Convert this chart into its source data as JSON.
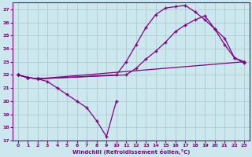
{
  "xlabel": "Windchill (Refroidissement éolien,°C)",
  "bg_color": "#cce8ee",
  "grid_color": "#aaccd4",
  "line_color": "#800080",
  "xlim": [
    -0.5,
    23.5
  ],
  "ylim": [
    17,
    27.5
  ],
  "yticks": [
    17,
    18,
    19,
    20,
    21,
    22,
    23,
    24,
    25,
    26,
    27
  ],
  "xticks": [
    0,
    1,
    2,
    3,
    4,
    5,
    6,
    7,
    8,
    9,
    10,
    11,
    12,
    13,
    14,
    15,
    16,
    17,
    18,
    19,
    20,
    21,
    22,
    23
  ],
  "curves": [
    {
      "x": [
        0,
        1,
        2,
        10,
        11,
        12,
        13,
        14,
        15,
        16,
        17,
        18,
        19,
        20,
        21,
        22,
        23
      ],
      "y": [
        22,
        21.8,
        21.7,
        22.0,
        23.0,
        24.3,
        25.6,
        26.6,
        27.1,
        27.2,
        27.3,
        26.8,
        26.2,
        25.5,
        24.3,
        23.3,
        23.0
      ]
    },
    {
      "x": [
        0,
        1,
        2,
        11,
        12,
        13,
        14,
        15,
        16,
        17,
        18,
        19,
        20,
        21,
        22,
        23
      ],
      "y": [
        22,
        21.8,
        21.7,
        22.0,
        22.5,
        23.2,
        23.8,
        24.5,
        25.3,
        25.8,
        26.2,
        26.5,
        25.5,
        24.8,
        23.3,
        22.9
      ]
    },
    {
      "x": [
        0,
        1,
        2,
        23
      ],
      "y": [
        22,
        21.8,
        21.7,
        23.0
      ]
    },
    {
      "x": [
        0,
        1,
        2,
        3,
        4,
        5,
        6,
        7,
        8,
        9,
        10
      ],
      "y": [
        22,
        21.8,
        21.7,
        21.5,
        21.0,
        20.5,
        20.0,
        19.5,
        18.5,
        17.3,
        20.0
      ]
    }
  ]
}
